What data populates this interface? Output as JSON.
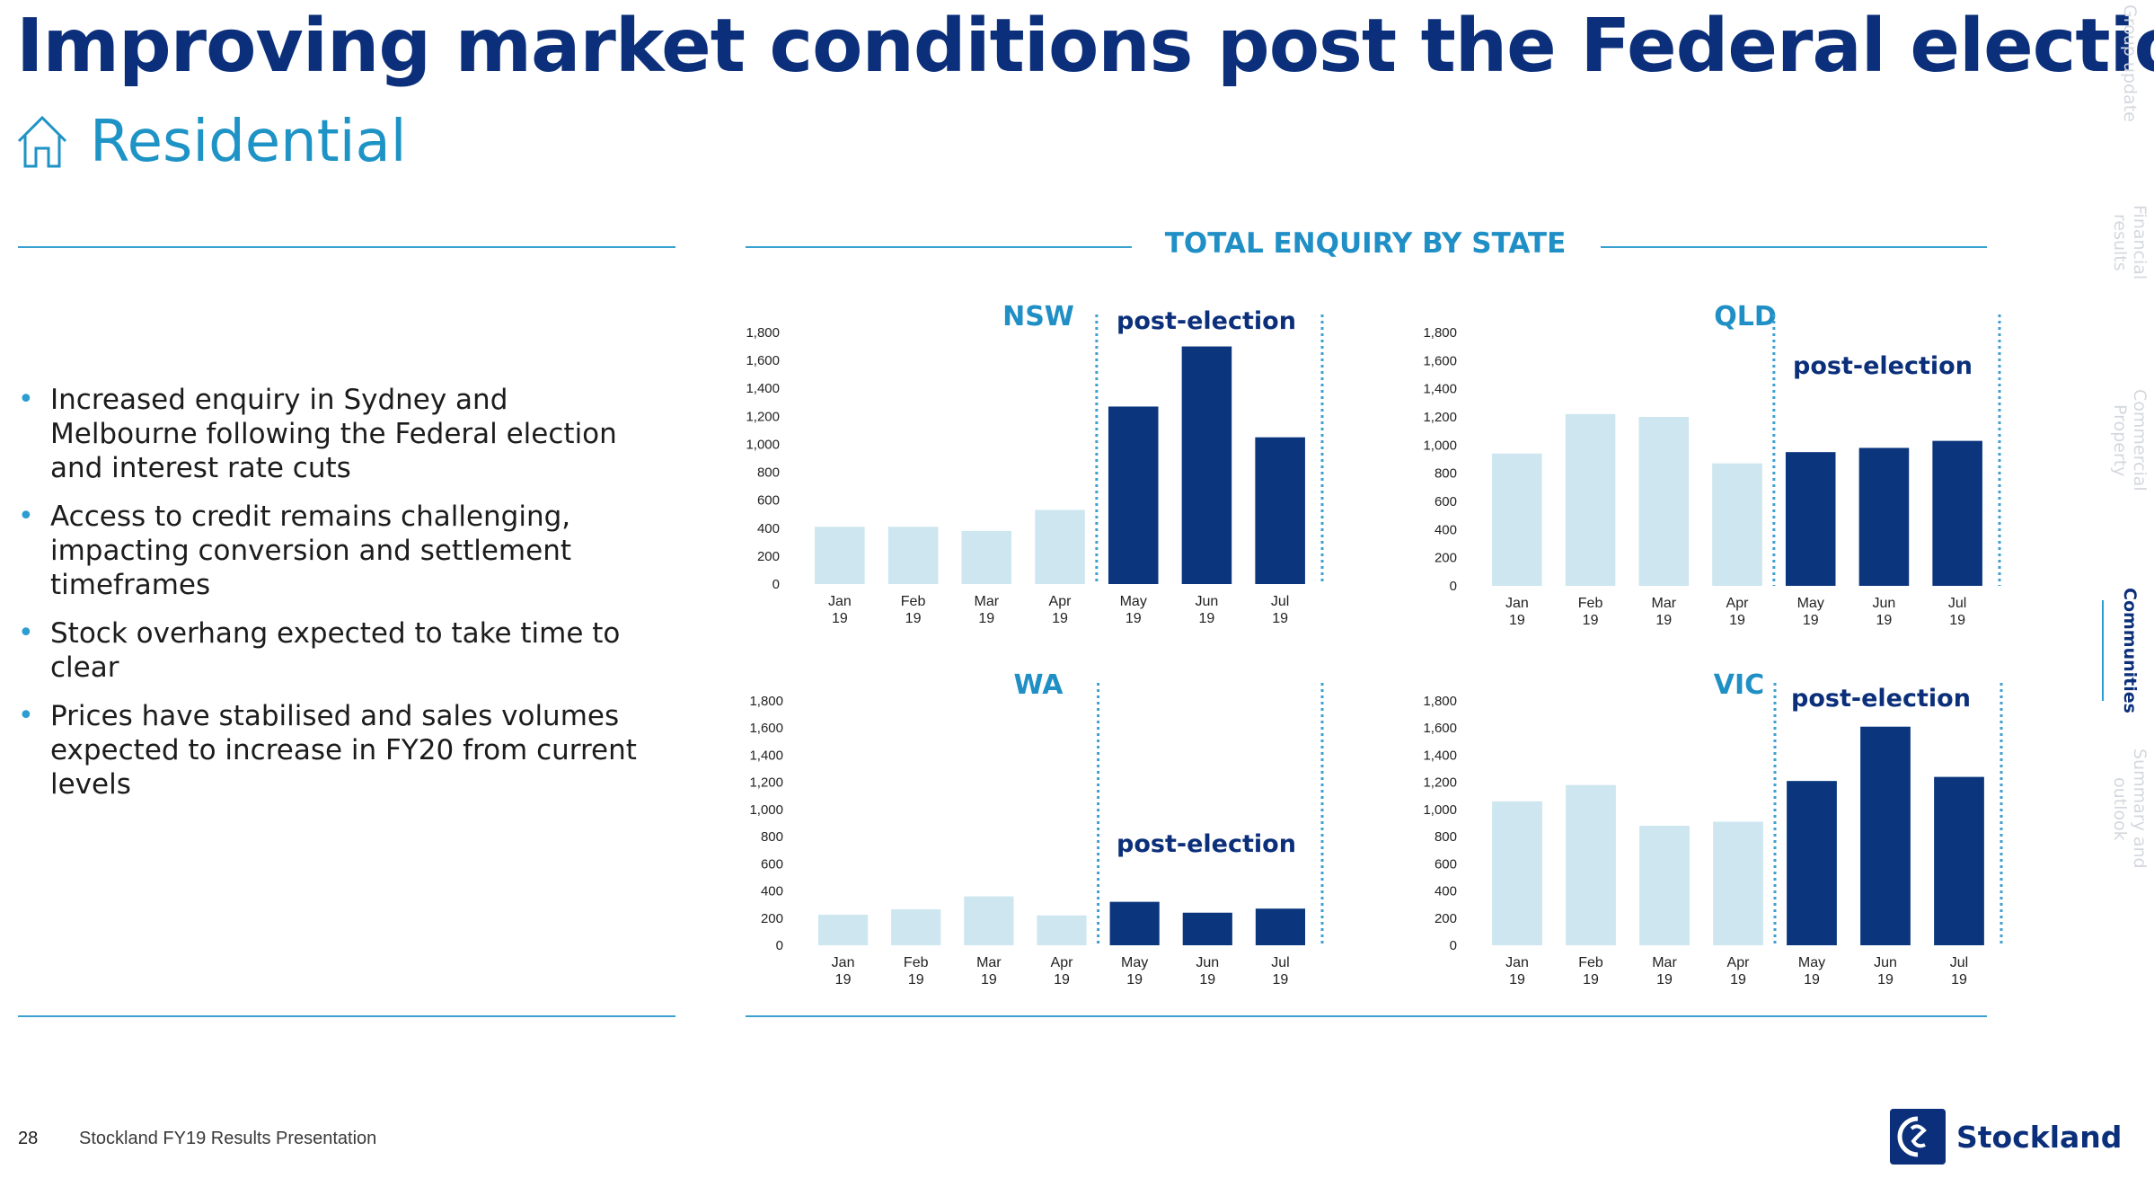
{
  "title": "Improving market conditions post the Federal election",
  "section": {
    "label": "Residential",
    "icon": "house-icon"
  },
  "bullets": [
    "Increased enquiry in Sydney and Melbourne following the Federal election and interest rate cuts",
    "Access to credit remains challenging, impacting conversion and settlement timeframes",
    "Stock overhang expected to take time to clear",
    "Prices have stabilised and sales volumes expected to increase in FY20 from current levels"
  ],
  "chart_heading": "TOTAL ENQUIRY BY STATE",
  "post_election_label": "post-election",
  "chart_data": [
    {
      "type": "bar",
      "title": "NSW",
      "categories": [
        "Jan 19",
        "Feb 19",
        "Mar 19",
        "Apr 19",
        "May 19",
        "Jun 19",
        "Jul 19"
      ],
      "values": [
        410,
        410,
        380,
        530,
        1270,
        1700,
        1050
      ],
      "ylim": [
        0,
        1800
      ],
      "yticks": [
        "1,800",
        "1,600",
        "1,400",
        "1,200",
        "1,000",
        "800",
        "600",
        "400",
        "200",
        "0"
      ],
      "highlight_from_index": 4
    },
    {
      "type": "bar",
      "title": "QLD",
      "categories": [
        "Jan 19",
        "Feb 19",
        "Mar 19",
        "Apr 19",
        "May 19",
        "Jun 19",
        "Jul 19"
      ],
      "values": [
        940,
        1220,
        1200,
        870,
        950,
        980,
        1030
      ],
      "ylim": [
        0,
        1800
      ],
      "yticks": [
        "1,800",
        "1,600",
        "1,400",
        "1,200",
        "1,000",
        "800",
        "600",
        "400",
        "200",
        "0"
      ],
      "highlight_from_index": 4
    },
    {
      "type": "bar",
      "title": "WA",
      "categories": [
        "Jan 19",
        "Feb 19",
        "Mar 19",
        "Apr 19",
        "May 19",
        "Jun 19",
        "Jul 19"
      ],
      "values": [
        225,
        265,
        360,
        220,
        320,
        240,
        270
      ],
      "ylim": [
        0,
        1800
      ],
      "yticks": [
        "1,800",
        "1,600",
        "1,400",
        "1,200",
        "1,000",
        "800",
        "600",
        "400",
        "200",
        "0"
      ],
      "highlight_from_index": 4
    },
    {
      "type": "bar",
      "title": "VIC",
      "categories": [
        "Jan 19",
        "Feb 19",
        "Mar 19",
        "Apr 19",
        "May 19",
        "Jun 19",
        "Jul 19"
      ],
      "values": [
        1060,
        1180,
        880,
        910,
        1210,
        1610,
        1240
      ],
      "ylim": [
        0,
        1800
      ],
      "yticks": [
        "1,800",
        "1,600",
        "1,400",
        "1,200",
        "1,000",
        "800",
        "600",
        "400",
        "200",
        "0"
      ],
      "highlight_from_index": 4
    }
  ],
  "colors": {
    "pre": "#cde6ef",
    "post": "#0b367d",
    "divider": "#3f9fcf",
    "state_title": "#1f8fc5",
    "post_label": "#0b2f7a"
  },
  "side_nav": [
    {
      "label": "Group update",
      "active": false
    },
    {
      "label": "Financial results",
      "active": false
    },
    {
      "label": "Commercial Property",
      "active": false
    },
    {
      "label": "Communities",
      "active": true
    },
    {
      "label": "Summary and outlook",
      "active": false
    }
  ],
  "footer": {
    "page": "28",
    "text": "Stockland FY19 Results Presentation"
  },
  "brand": {
    "name": "Stockland"
  }
}
